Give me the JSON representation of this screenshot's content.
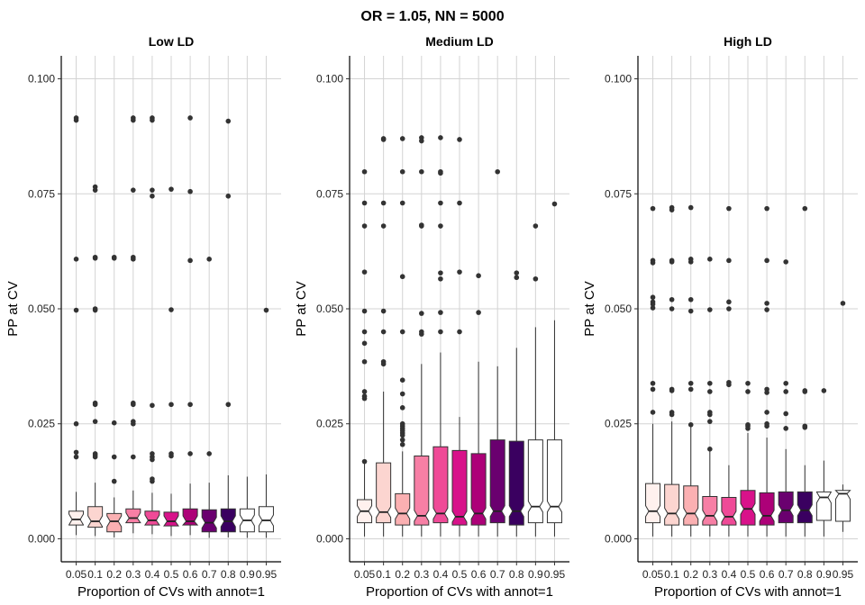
{
  "chart_data": {
    "type": "boxplot",
    "title": "OR = 1.05, NN = 5000",
    "xlabel": "Proportion of CVs with annot=1",
    "ylabel": "PP at CV",
    "ylim": [
      -0.005,
      0.105
    ],
    "yticks": [
      0.0,
      0.025,
      0.05,
      0.075,
      0.1
    ],
    "ytick_labels": [
      "0.000",
      "0.025",
      "0.050",
      "0.075",
      "0.100"
    ],
    "categories": [
      "0.05",
      "0.1",
      "0.2",
      "0.3",
      "0.4",
      "0.5",
      "0.6",
      "0.7",
      "0.8",
      "0.9",
      "0.95"
    ],
    "fill_colors": [
      "#fff1ee",
      "#fcd5d0",
      "#fbb0b2",
      "#f77fa5",
      "#ef4a97",
      "#d8128a",
      "#ad0178",
      "#6a006f",
      "#3a0060",
      "#ffffff",
      "#ffffff"
    ],
    "grid": true,
    "notched": true,
    "panels": [
      {
        "title": "Low LD",
        "boxes": [
          {
            "q1": 0.003,
            "median": 0.0042,
            "q3": 0.006,
            "lower_whisker": 0.0008,
            "upper_whisker": 0.0102,
            "outliers": [
              0.0915,
              0.091,
              0.0608,
              0.0497,
              0.025,
              0.0188,
              0.0178
            ]
          },
          {
            "q1": 0.0025,
            "median": 0.0038,
            "q3": 0.007,
            "lower_whisker": 0.0006,
            "upper_whisker": 0.0122,
            "outliers": [
              0.0765,
              0.0758,
              0.0612,
              0.061,
              0.05,
              0.0497,
              0.0295,
              0.0292,
              0.0255,
              0.0185,
              0.0182,
              0.0178
            ]
          },
          {
            "q1": 0.0015,
            "median": 0.0038,
            "q3": 0.0055,
            "lower_whisker": 0.0003,
            "upper_whisker": 0.009,
            "outliers": [
              0.0612,
              0.061,
              0.0252,
              0.0178,
              0.0125
            ]
          },
          {
            "q1": 0.0035,
            "median": 0.0045,
            "q3": 0.0065,
            "lower_whisker": 0.0012,
            "upper_whisker": 0.0105,
            "outliers": [
              0.0915,
              0.091,
              0.0758,
              0.0612,
              0.0608,
              0.0295,
              0.0292,
              0.0255,
              0.025,
              0.0178
            ]
          },
          {
            "q1": 0.003,
            "median": 0.004,
            "q3": 0.006,
            "lower_whisker": 0.001,
            "upper_whisker": 0.01,
            "outliers": [
              0.0915,
              0.091,
              0.0758,
              0.0745,
              0.029,
              0.0185,
              0.0178,
              0.0172,
              0.013,
              0.0125
            ]
          },
          {
            "q1": 0.0028,
            "median": 0.0038,
            "q3": 0.0058,
            "lower_whisker": 0.0006,
            "upper_whisker": 0.0098,
            "outliers": [
              0.076,
              0.0498,
              0.0292,
              0.0185,
              0.018
            ]
          },
          {
            "q1": 0.003,
            "median": 0.0038,
            "q3": 0.0065,
            "lower_whisker": 0.0008,
            "upper_whisker": 0.012,
            "outliers": [
              0.0915,
              0.0755,
              0.0605,
              0.0292,
              0.0185
            ]
          },
          {
            "q1": 0.0015,
            "median": 0.0035,
            "q3": 0.0063,
            "lower_whisker": 0.0002,
            "upper_whisker": 0.0122,
            "outliers": [
              0.0608,
              0.0185
            ]
          },
          {
            "q1": 0.0015,
            "median": 0.0038,
            "q3": 0.0065,
            "lower_whisker": 0.0003,
            "upper_whisker": 0.0138,
            "outliers": [
              0.0908,
              0.0745,
              0.0292
            ]
          },
          {
            "q1": 0.0015,
            "median": 0.004,
            "q3": 0.0065,
            "lower_whisker": 0.0002,
            "upper_whisker": 0.0135,
            "outliers": []
          },
          {
            "q1": 0.0015,
            "median": 0.004,
            "q3": 0.007,
            "lower_whisker": 0.0002,
            "upper_whisker": 0.014,
            "outliers": [
              0.0497
            ]
          }
        ]
      },
      {
        "title": "Medium LD",
        "boxes": [
          {
            "q1": 0.0035,
            "median": 0.006,
            "q3": 0.0085,
            "lower_whisker": 0.0005,
            "upper_whisker": 0.0165,
            "outliers": [
              0.0798,
              0.073,
              0.068,
              0.058,
              0.0495,
              0.045,
              0.0425,
              0.0385,
              0.032,
              0.031,
              0.0305,
              0.0168
            ]
          },
          {
            "q1": 0.0035,
            "median": 0.0058,
            "q3": 0.0165,
            "lower_whisker": 0.0005,
            "upper_whisker": 0.032,
            "outliers": [
              0.087,
              0.0868,
              0.073,
              0.068,
              0.0495,
              0.045,
              0.0385,
              0.038
            ]
          },
          {
            "q1": 0.003,
            "median": 0.0055,
            "q3": 0.0098,
            "lower_whisker": 0.0005,
            "upper_whisker": 0.019,
            "outliers": [
              0.087,
              0.0798,
              0.073,
              0.057,
              0.045,
              0.0345,
              0.0315,
              0.0285,
              0.025,
              0.0245,
              0.024,
              0.0235,
              0.023,
              0.0225,
              0.0215,
              0.0205
            ]
          },
          {
            "q1": 0.003,
            "median": 0.005,
            "q3": 0.018,
            "lower_whisker": 0.0005,
            "upper_whisker": 0.038,
            "outliers": [
              0.0872,
              0.0865,
              0.0798,
              0.0682,
              0.068,
              0.049,
              0.045,
              0.0445
            ]
          },
          {
            "q1": 0.0035,
            "median": 0.0055,
            "q3": 0.02,
            "lower_whisker": 0.0005,
            "upper_whisker": 0.0405,
            "outliers": [
              0.0872,
              0.0798,
              0.0795,
              0.073,
              0.068,
              0.0578,
              0.0565,
              0.0492,
              0.045
            ]
          },
          {
            "q1": 0.003,
            "median": 0.0048,
            "q3": 0.0192,
            "lower_whisker": 0.0005,
            "upper_whisker": 0.0265,
            "outliers": [
              0.0868,
              0.073,
              0.058,
              0.045
            ]
          },
          {
            "q1": 0.003,
            "median": 0.0055,
            "q3": 0.0185,
            "lower_whisker": 0.0005,
            "upper_whisker": 0.0385,
            "outliers": [
              0.0572,
              0.0492
            ]
          },
          {
            "q1": 0.0035,
            "median": 0.006,
            "q3": 0.0215,
            "lower_whisker": 0.0005,
            "upper_whisker": 0.0375,
            "outliers": [
              0.0798
            ]
          },
          {
            "q1": 0.003,
            "median": 0.006,
            "q3": 0.0212,
            "lower_whisker": 0.0005,
            "upper_whisker": 0.0415,
            "outliers": [
              0.0578,
              0.0568
            ]
          },
          {
            "q1": 0.0035,
            "median": 0.007,
            "q3": 0.0215,
            "lower_whisker": 0.0005,
            "upper_whisker": 0.046,
            "outliers": [
              0.068,
              0.0565
            ]
          },
          {
            "q1": 0.0035,
            "median": 0.007,
            "q3": 0.0215,
            "lower_whisker": 0.0005,
            "upper_whisker": 0.0475,
            "outliers": [
              0.0728
            ]
          }
        ]
      },
      {
        "title": "High LD",
        "boxes": [
          {
            "q1": 0.0035,
            "median": 0.006,
            "q3": 0.012,
            "lower_whisker": 0.0005,
            "upper_whisker": 0.025,
            "outliers": [
              0.0718,
              0.0605,
              0.06,
              0.0525,
              0.0515,
              0.051,
              0.0502,
              0.0338,
              0.0325,
              0.0275
            ]
          },
          {
            "q1": 0.003,
            "median": 0.0055,
            "q3": 0.0118,
            "lower_whisker": 0.0005,
            "upper_whisker": 0.0255,
            "outliers": [
              0.072,
              0.0715,
              0.0605,
              0.0602,
              0.052,
              0.05,
              0.0325,
              0.0322,
              0.0275,
              0.027
            ]
          },
          {
            "q1": 0.003,
            "median": 0.0055,
            "q3": 0.0115,
            "lower_whisker": 0.0005,
            "upper_whisker": 0.0245,
            "outliers": [
              0.072,
              0.0608,
              0.0602,
              0.052,
              0.0495,
              0.0338,
              0.0325,
              0.0248
            ]
          },
          {
            "q1": 0.003,
            "median": 0.005,
            "q3": 0.0092,
            "lower_whisker": 0.0005,
            "upper_whisker": 0.019,
            "outliers": [
              0.0608,
              0.0498,
              0.0338,
              0.032,
              0.0275,
              0.027,
              0.0255,
              0.0195
            ]
          },
          {
            "q1": 0.003,
            "median": 0.0048,
            "q3": 0.009,
            "lower_whisker": 0.0005,
            "upper_whisker": 0.016,
            "outliers": [
              0.0718,
              0.0605,
              0.0515,
              0.05,
              0.034,
              0.0335
            ]
          },
          {
            "q1": 0.003,
            "median": 0.0065,
            "q3": 0.0105,
            "lower_whisker": 0.0005,
            "upper_whisker": 0.023,
            "outliers": [
              0.0338,
              0.032,
              0.0248,
              0.0245,
              0.024
            ]
          },
          {
            "q1": 0.003,
            "median": 0.005,
            "q3": 0.01,
            "lower_whisker": 0.0005,
            "upper_whisker": 0.022,
            "outliers": [
              0.0718,
              0.0605,
              0.0512,
              0.0498,
              0.0325,
              0.0318,
              0.0275,
              0.025,
              0.0245
            ]
          },
          {
            "q1": 0.0035,
            "median": 0.0062,
            "q3": 0.0102,
            "lower_whisker": 0.0005,
            "upper_whisker": 0.0195,
            "outliers": [
              0.0602,
              0.0338,
              0.032,
              0.0272,
              0.024
            ]
          },
          {
            "q1": 0.0035,
            "median": 0.0062,
            "q3": 0.0102,
            "lower_whisker": 0.0005,
            "upper_whisker": 0.016,
            "outliers": [
              0.0718,
              0.0322,
              0.032,
              0.0245,
              0.0242
            ]
          },
          {
            "q1": 0.004,
            "median": 0.009,
            "q3": 0.0102,
            "lower_whisker": 0.0005,
            "upper_whisker": 0.017,
            "outliers": [
              0.0322
            ]
          },
          {
            "q1": 0.0038,
            "median": 0.0098,
            "q3": 0.0105,
            "lower_whisker": 0.0015,
            "upper_whisker": 0.0118,
            "outliers": [
              0.0512
            ]
          }
        ]
      }
    ]
  }
}
